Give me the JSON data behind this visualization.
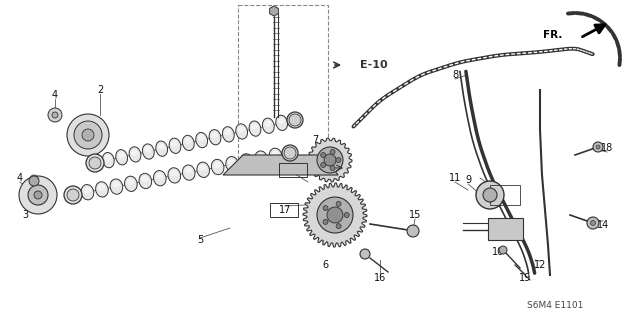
{
  "bg_color": "#ffffff",
  "dark_color": "#333333",
  "med_color": "#888888",
  "light_color": "#cccccc",
  "fig_width": 6.4,
  "fig_height": 3.19,
  "dpi": 100,
  "footer_text": "S6M4 E1101",
  "fr_label": "FR."
}
